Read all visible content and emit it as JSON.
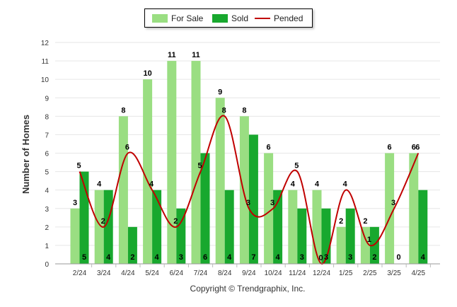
{
  "chart_data": {
    "type": "bar",
    "categories": [
      "2/24",
      "3/24",
      "4/24",
      "5/24",
      "6/24",
      "7/24",
      "8/24",
      "9/24",
      "10/24",
      "11/24",
      "12/24",
      "1/25",
      "2/25",
      "3/25",
      "4/25"
    ],
    "series": [
      {
        "name": "For Sale",
        "kind": "bar",
        "color": "#9ade82",
        "values": [
          3,
          4,
          8,
          10,
          11,
          11,
          9,
          8,
          6,
          4,
          4,
          2,
          2,
          6,
          6
        ]
      },
      {
        "name": "Sold",
        "kind": "bar",
        "color": "#18a82e",
        "values": [
          5,
          4,
          2,
          4,
          3,
          6,
          4,
          7,
          4,
          3,
          3,
          3,
          2,
          0,
          4
        ]
      },
      {
        "name": "Pended",
        "kind": "line",
        "color": "#c00000",
        "values": [
          5,
          2,
          6,
          4,
          2,
          5,
          8,
          3,
          3,
          5,
          0,
          4,
          1,
          3,
          6
        ]
      }
    ],
    "ylabel": "Number of Homes",
    "xlabel": "",
    "ylim": [
      0,
      12
    ],
    "yticks": [
      "0",
      "1",
      "2",
      "3",
      "4",
      "5",
      "6",
      "7",
      "8",
      "9",
      "10",
      "11",
      "12"
    ],
    "grid": true,
    "legend": "top-center",
    "footer": "Copyright © Trendgraphix, Inc."
  }
}
